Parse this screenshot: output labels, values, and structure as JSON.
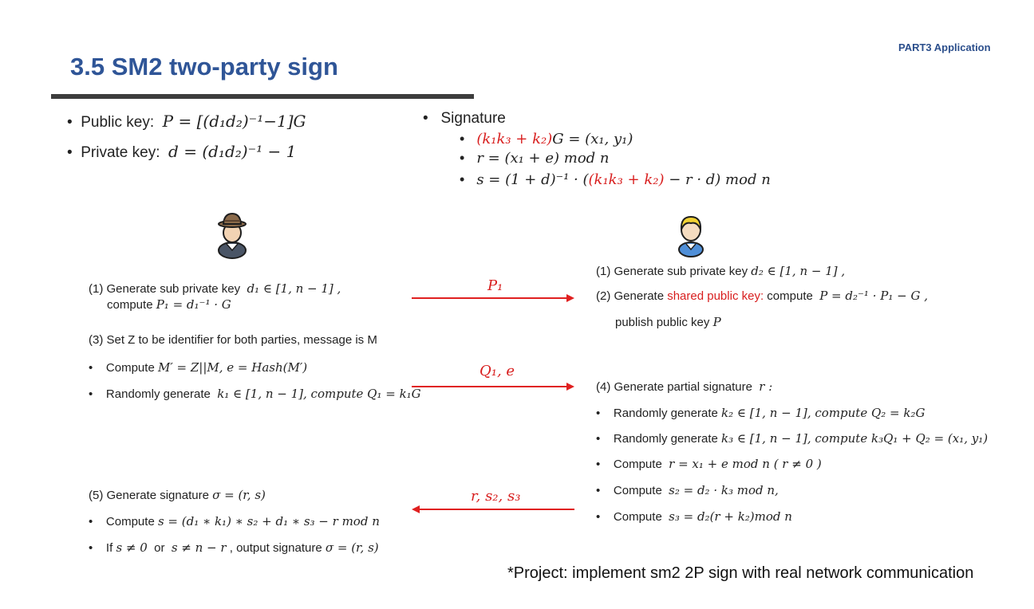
{
  "header": {
    "part_label": "PART3 Application",
    "title": "3.5  SM2 two-party sign"
  },
  "keys": {
    "public_key_label": "Public key:",
    "public_key_formula": "P = [(d₁d₂)⁻¹−1]G",
    "private_key_label": "Private key:",
    "private_key_formula": "d = (d₁d₂)⁻¹ − 1"
  },
  "signature": {
    "heading": "Signature",
    "line1_red": "(k₁k₃ + k₂)",
    "line1_rest": "G = (x₁, y₁)",
    "line2": "r = (x₁ + e) mod n",
    "line3_pre": "s = (1 + d)⁻¹ · (",
    "line3_red": "(k₁k₃ + k₂)",
    "line3_post": " − r · d) mod n"
  },
  "left": {
    "step1_line1": "(1) Generate sub private key",
    "step1_formula": "d₁ ∈ [1, n − 1]   ,",
    "step1_line2_text": "compute",
    "step1_line2_formula": "P₁ = d₁⁻¹ · G",
    "step3": "(3) Set Z to be identifier for both parties, message is M",
    "step3_b1_text": "Compute",
    "step3_b1_formula": "M′ = Z||M,  e = Hash(M′)",
    "step3_b2_text": "Randomly generate",
    "step3_b2_formula": "k₁ ∈ [1, n − 1],  compute Q₁ = k₁G",
    "step5": "(5) Generate signature",
    "step5_formula": "σ = (r, s)",
    "step5_b1_text": "Compute",
    "step5_b1_formula": "s = (d₁ ∗ k₁) ∗ s₂ + d₁ ∗ s₃ − r mod n",
    "step5_b2_pre": "If",
    "step5_b2_f1": "s ≠ 0",
    "step5_b2_or": "or",
    "step5_b2_f2": "s ≠ n − r",
    "step5_b2_post": ", output signature",
    "step5_b2_f3": "σ = (r, s)"
  },
  "right": {
    "step1_text": "(1) Generate sub private key",
    "step1_formula": "d₂ ∈ [1, n − 1]  ,",
    "step2_pre": "(2) Generate",
    "step2_red": "shared public key:",
    "step2_post": "compute",
    "step2_formula": "P = d₂⁻¹ · P₁ − G  ,",
    "step2_line2_text": "publish public key",
    "step2_line2_formula": "P",
    "step4_text": "(4) Generate partial signature",
    "step4_formula": "r :",
    "b1_text": "Randomly generate",
    "b1_formula": "k₂ ∈ [1, n − 1], compute Q₂ = k₂G",
    "b2_text": "Randomly generate",
    "b2_formula": "k₃ ∈ [1, n − 1], compute k₃Q₁ + Q₂ = (x₁, y₁)",
    "b3_text": "Compute",
    "b3_formula": "r = x₁ + e mod n  ( r ≠ 0 )",
    "b4_text": "Compute",
    "b4_formula": "s₂ = d₂ · k₃ mod n,",
    "b5_text": "Compute",
    "b5_formula": "s₃ = d₂(r + k₂)mod n"
  },
  "arrows": {
    "a1_label": "P₁",
    "a2_label": "Q₁, e",
    "a3_label": "r, s₂, s₃"
  },
  "footer": "*Project: implement sm2 2P sign with real network communication",
  "colors": {
    "title": "#2f5597",
    "accent_red": "#d81e1e",
    "rule": "#3d3d3d"
  },
  "icons": {
    "party1": "user-with-hat-icon",
    "party2": "user-blonde-icon"
  }
}
